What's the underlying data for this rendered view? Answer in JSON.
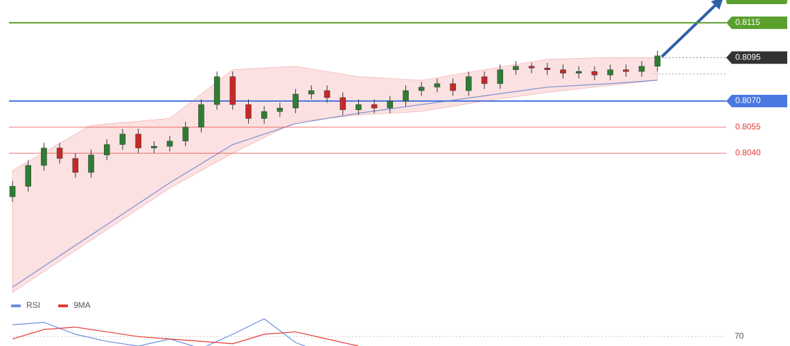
{
  "chart_data": {
    "type": "candlestick",
    "ylim": [
      0.7961,
      0.81281
    ],
    "open": [
      0.8015,
      0.8021,
      0.8033,
      0.8043,
      0.8037,
      0.8029,
      0.8039,
      0.8045,
      0.8051,
      0.8043,
      0.8044,
      0.8047,
      0.8055,
      0.8068,
      0.8084,
      0.8068,
      0.806,
      0.8064,
      0.8066,
      0.8074,
      0.8076,
      0.8072,
      0.8065,
      0.8068,
      0.8066,
      0.807,
      0.8076,
      0.8078,
      0.808,
      0.8076,
      0.8084,
      0.808,
      0.8088,
      0.809,
      0.8089,
      0.8088,
      0.8086,
      0.8087,
      0.8085,
      0.8088,
      0.8087,
      0.809
    ],
    "high": [
      0.8024,
      0.8036,
      0.8046,
      0.8046,
      0.804,
      0.8042,
      0.8048,
      0.8054,
      0.8054,
      0.8047,
      0.805,
      0.8058,
      0.8071,
      0.8087,
      0.8087,
      0.8071,
      0.8067,
      0.8069,
      0.8077,
      0.8079,
      0.8079,
      0.8075,
      0.8071,
      0.8071,
      0.8073,
      0.8079,
      0.8081,
      0.8083,
      0.8083,
      0.8087,
      0.8087,
      0.8091,
      0.8093,
      0.8092,
      0.8092,
      0.8091,
      0.809,
      0.809,
      0.8091,
      0.8091,
      0.8093,
      0.8099
    ],
    "low": [
      0.8012,
      0.8018,
      0.803,
      0.8034,
      0.8026,
      0.8026,
      0.8036,
      0.8042,
      0.804,
      0.804,
      0.8041,
      0.8044,
      0.8052,
      0.8065,
      0.8065,
      0.8057,
      0.8057,
      0.8061,
      0.8063,
      0.8071,
      0.8069,
      0.8062,
      0.8062,
      0.8063,
      0.8063,
      0.8067,
      0.8073,
      0.8075,
      0.8073,
      0.8073,
      0.8077,
      0.8077,
      0.8085,
      0.8086,
      0.8085,
      0.8083,
      0.8083,
      0.8082,
      0.8082,
      0.8084,
      0.8084,
      0.8087
    ],
    "close": [
      0.8021,
      0.8033,
      0.8043,
      0.8037,
      0.8029,
      0.8039,
      0.8045,
      0.8051,
      0.8043,
      0.8044,
      0.8047,
      0.8055,
      0.8068,
      0.8084,
      0.8068,
      0.806,
      0.8064,
      0.8066,
      0.8074,
      0.8076,
      0.8072,
      0.8065,
      0.8068,
      0.8066,
      0.807,
      0.8076,
      0.8078,
      0.808,
      0.8076,
      0.8084,
      0.808,
      0.8088,
      0.809,
      0.8089,
      0.8088,
      0.8086,
      0.8087,
      0.8085,
      0.8088,
      0.8087,
      0.809,
      0.8096
    ],
    "up_color": "#2e7d32",
    "down_color": "#c62828",
    "moving_average": {
      "color": "#7b8fd0",
      "x": [
        0,
        5,
        10,
        14,
        18,
        22,
        26,
        30,
        34,
        38,
        41
      ],
      "values": [
        0.7963,
        0.7993,
        0.8023,
        0.8045,
        0.8057,
        0.8063,
        0.8068,
        0.8073,
        0.8078,
        0.808,
        0.8082
      ]
    },
    "band": {
      "color": "#f8c8c8",
      "x": [
        0,
        5,
        10,
        14,
        18,
        22,
        26,
        30,
        34,
        38,
        41
      ],
      "upper": [
        0.803,
        0.8056,
        0.806,
        0.8088,
        0.809,
        0.8084,
        0.8082,
        0.8088,
        0.8094,
        0.8095,
        0.8095
      ],
      "lower": [
        0.796,
        0.799,
        0.802,
        0.804,
        0.8058,
        0.8062,
        0.8064,
        0.807,
        0.8075,
        0.8079,
        0.8082
      ]
    },
    "levels": [
      {
        "value": 0.8115,
        "color": "#5aa02c",
        "style": "badge"
      },
      {
        "value": 0.8095,
        "color": "#333333",
        "style": "dotted-badge"
      },
      {
        "value": {
          "value": 0.807,
          "label": "0.8070"
        },
        "color": "#4a78e0",
        "style": "badge"
      },
      {
        "value": 0.8055,
        "color": "#e53935",
        "style": "text"
      },
      {
        "value": {
          "value": 0.804,
          "label": "0.8040"
        },
        "color": "#e53935",
        "style": "text"
      }
    ],
    "rsi": {
      "ylim": [
        30,
        100
      ],
      "yticks": [
        70
      ],
      "x": [
        0,
        2,
        4,
        6,
        8,
        10,
        12,
        14,
        16,
        18,
        20,
        22
      ],
      "series": [
        {
          "name": "RSI",
          "color": "#6a8ee0",
          "values": [
            80,
            82,
            72,
            66,
            62,
            68,
            60,
            72,
            85,
            65,
            55,
            50
          ]
        },
        {
          "name": "9MA",
          "color": "#e53935",
          "values": [
            68,
            76,
            78,
            74,
            70,
            68,
            66,
            64,
            72,
            74,
            68,
            62
          ]
        }
      ]
    }
  }
}
